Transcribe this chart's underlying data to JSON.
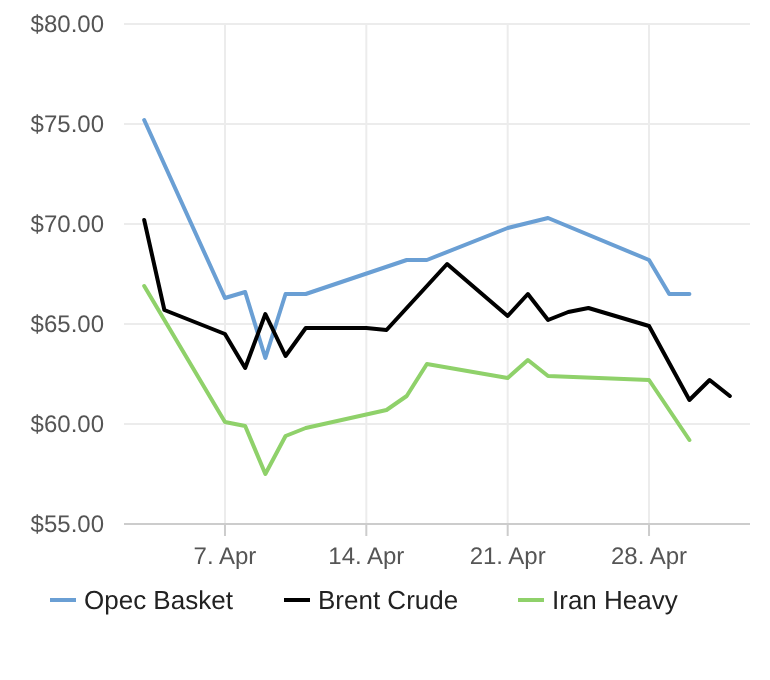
{
  "chart_data": {
    "type": "line",
    "xlim": [
      "--04-02",
      "--05-03"
    ],
    "ylim": [
      55,
      80
    ],
    "xticks": [
      {
        "value": "--04-07",
        "label": "7. Apr"
      },
      {
        "value": "--04-14",
        "label": "14. Apr"
      },
      {
        "value": "--04-21",
        "label": "21. Apr"
      },
      {
        "value": "--04-28",
        "label": "28. Apr"
      }
    ],
    "yticks": [
      {
        "value": 55,
        "label": "$55.00"
      },
      {
        "value": 60,
        "label": "$60.00"
      },
      {
        "value": 65,
        "label": "$65.00"
      },
      {
        "value": 70,
        "label": "$70.00"
      },
      {
        "value": 75,
        "label": "$75.00"
      },
      {
        "value": 80,
        "label": "$80.00"
      }
    ],
    "grid": true,
    "legend": "bottom",
    "marker": "none",
    "line_style": "solid",
    "series": [
      {
        "name": "Opec Basket",
        "color": "#6a9fd4",
        "x": [
          "--04-03",
          "--04-07",
          "--04-08",
          "--04-09",
          "--04-10",
          "--04-11",
          "--04-16",
          "--04-17",
          "--04-21",
          "--04-23",
          "--04-28",
          "--04-29",
          "--04-30"
        ],
        "values": [
          75.2,
          66.3,
          66.6,
          63.3,
          66.5,
          66.5,
          68.2,
          68.2,
          69.8,
          70.3,
          68.2,
          66.5,
          66.5
        ]
      },
      {
        "name": "Brent Crude",
        "color": "#000000",
        "x": [
          "--04-03",
          "--04-04",
          "--04-07",
          "--04-08",
          "--04-09",
          "--04-10",
          "--04-11",
          "--04-14",
          "--04-15",
          "--04-18",
          "--04-21",
          "--04-22",
          "--04-23",
          "--04-24",
          "--04-25",
          "--04-28",
          "--04-30",
          "--05-01",
          "--05-02"
        ],
        "values": [
          70.2,
          65.7,
          64.5,
          62.8,
          65.5,
          63.4,
          64.8,
          64.8,
          64.7,
          68.0,
          65.4,
          66.5,
          65.2,
          65.6,
          65.8,
          64.9,
          61.2,
          62.2,
          61.4
        ]
      },
      {
        "name": "Iran Heavy",
        "color": "#8fd16a",
        "x": [
          "--04-03",
          "--04-07",
          "--04-08",
          "--04-09",
          "--04-10",
          "--04-11",
          "--04-15",
          "--04-16",
          "--04-17",
          "--04-21",
          "--04-22",
          "--04-23",
          "--04-28",
          "--04-30"
        ],
        "values": [
          66.9,
          60.1,
          59.9,
          57.5,
          59.4,
          59.8,
          60.7,
          61.4,
          63.0,
          62.3,
          63.2,
          62.4,
          62.2,
          59.2
        ]
      }
    ]
  }
}
